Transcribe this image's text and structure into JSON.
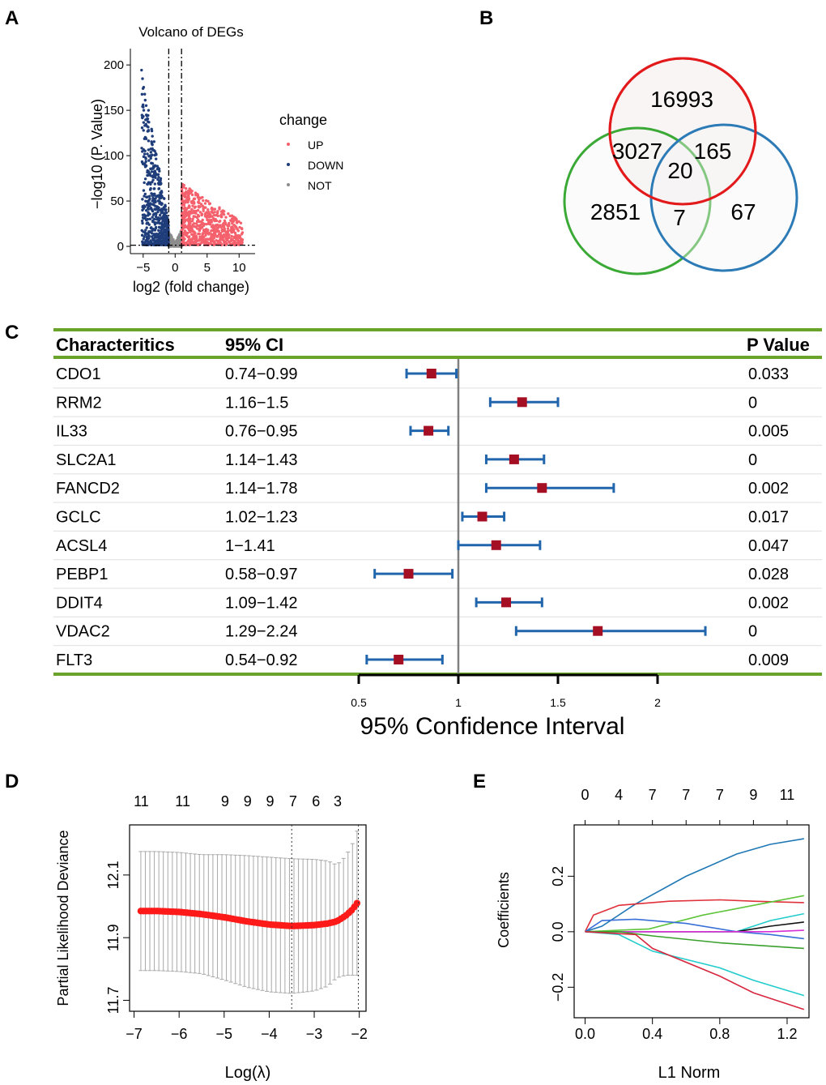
{
  "panels": {
    "A": "A",
    "B": "B",
    "C": "C",
    "D": "D",
    "E": "E"
  },
  "colors": {
    "up": "#f4606c",
    "down": "#1f3d7a",
    "not": "#8c8c8c",
    "venn_red": "#e31a1c",
    "venn_green": "#3aa935",
    "venn_blue": "#2c7bb6",
    "rule_green": "#6aa32a",
    "square": "#a50f24",
    "ci_blue": "#2166ac"
  },
  "chart_data": [
    {
      "id": "volcano",
      "type": "scatter",
      "title": "Volcano of DEGs",
      "xlabel": "log2 (fold change)",
      "ylabel": "−log10 (P. Value)",
      "xlim": [
        -7,
        12.5
      ],
      "ylim": [
        -8,
        218
      ],
      "xticks": [
        -5,
        0,
        5,
        10
      ],
      "yticks": [
        0,
        50,
        100,
        150,
        200
      ],
      "xtick_labels": [
        "−5",
        "0",
        "5",
        "10"
      ],
      "ytick_labels": [
        "0",
        "50",
        "100",
        "150",
        "200"
      ],
      "thresholds": {
        "log2fc": [
          -1,
          1
        ],
        "neg_log10_p": 1.3
      },
      "legend": {
        "title": "change",
        "entries": [
          "UP",
          "DOWN",
          "NOT"
        ]
      }
    },
    {
      "id": "venn",
      "type": "venn",
      "region_counts": [
        "16993",
        "3027",
        "165",
        "20",
        "2851",
        "7",
        "67"
      ]
    },
    {
      "id": "forest",
      "type": "forest",
      "headers": {
        "name": "Characteritics",
        "ci": "95% CI",
        "p": "P Value"
      },
      "rows": [
        {
          "name": "CDO1",
          "ci": "0.74−0.99",
          "est": 0.865,
          "low": 0.74,
          "high": 0.99,
          "p": "0.033"
        },
        {
          "name": "RRM2",
          "ci": "1.16−1.5",
          "est": 1.32,
          "low": 1.16,
          "high": 1.5,
          "p": "0"
        },
        {
          "name": "IL33",
          "ci": "0.76−0.95",
          "est": 0.85,
          "low": 0.76,
          "high": 0.95,
          "p": "0.005"
        },
        {
          "name": "SLC2A1",
          "ci": "1.14−1.43",
          "est": 1.28,
          "low": 1.14,
          "high": 1.43,
          "p": "0"
        },
        {
          "name": "FANCD2",
          "ci": "1.14−1.78",
          "est": 1.42,
          "low": 1.14,
          "high": 1.78,
          "p": "0.002"
        },
        {
          "name": "GCLC",
          "ci": "1.02−1.23",
          "est": 1.12,
          "low": 1.02,
          "high": 1.23,
          "p": "0.017"
        },
        {
          "name": "ACSL4",
          "ci": "1−1.41",
          "est": 1.19,
          "low": 1.0,
          "high": 1.41,
          "p": "0.047"
        },
        {
          "name": "PEBP1",
          "ci": "0.58−0.97",
          "est": 0.75,
          "low": 0.58,
          "high": 0.97,
          "p": "0.028"
        },
        {
          "name": "DDIT4",
          "ci": "1.09−1.42",
          "est": 1.24,
          "low": 1.09,
          "high": 1.42,
          "p": "0.002"
        },
        {
          "name": "VDAC2",
          "ci": "1.29−2.24",
          "est": 1.7,
          "low": 1.29,
          "high": 2.24,
          "p": "0"
        },
        {
          "name": "FLT3",
          "ci": "0.54−0.92",
          "est": 0.7,
          "low": 0.54,
          "high": 0.92,
          "p": "0.009"
        }
      ],
      "xlim": [
        0.5,
        2
      ],
      "reference": 1,
      "xticks": [
        0.5,
        1,
        1.5,
        2
      ],
      "xtick_labels": [
        "0.5",
        "1",
        "1.5",
        "2"
      ],
      "xlabel": "95% Confidence Interval"
    },
    {
      "id": "lasso_cv",
      "type": "line",
      "xlabel": "Log(λ)",
      "ylabel": "Partial Likelihood Deviance",
      "xlim": [
        -7.1,
        -1.85
      ],
      "ylim": [
        11.665,
        12.26
      ],
      "xticks": [
        -7,
        -6,
        -5,
        -4,
        -3,
        -2
      ],
      "xtick_labels": [
        "−7",
        "−6",
        "−5",
        "−4",
        "−3",
        "−2"
      ],
      "yticks": [
        11.7,
        11.9,
        12.1
      ],
      "ytick_labels": [
        "11.7",
        "11.9",
        "12.1"
      ],
      "top_ticks": [
        -6.84,
        -5.92,
        -4.98,
        -4.48,
        -3.98,
        -3.47,
        -2.96,
        -2.48
      ],
      "top_labels": [
        "11",
        "11",
        "9",
        "9",
        "9",
        "7",
        "6",
        "3"
      ],
      "vlines": [
        -3.5,
        -2.02
      ],
      "x": [
        -6.85,
        -6.5,
        -6.0,
        -5.5,
        -5.0,
        -4.5,
        -4.0,
        -3.5,
        -3.0,
        -2.7,
        -2.5,
        -2.3,
        -2.15,
        -2.05
      ],
      "y": [
        11.985,
        11.985,
        11.982,
        11.975,
        11.965,
        11.952,
        11.942,
        11.937,
        11.94,
        11.945,
        11.952,
        11.97,
        11.99,
        12.01
      ],
      "error": [
        0.19,
        0.19,
        0.19,
        0.19,
        0.2,
        0.21,
        0.215,
        0.215,
        0.21,
        0.2,
        0.18,
        0.19,
        0.21,
        0.23
      ]
    },
    {
      "id": "lasso_path",
      "type": "line",
      "xlabel": "L1 Norm",
      "ylabel": "Coefficients",
      "xlim": [
        -0.065,
        1.33
      ],
      "ylim": [
        -0.31,
        0.385
      ],
      "xticks": [
        0,
        0.4,
        0.8,
        1.2
      ],
      "xtick_labels": [
        "0.0",
        "0.4",
        "0.8",
        "1.2"
      ],
      "yticks": [
        -0.2,
        0,
        0.2
      ],
      "ytick_labels": [
        "−0.2",
        "0.0",
        "0.2"
      ],
      "top_ticks": [
        0,
        0.2,
        0.4,
        0.6,
        0.8,
        1.0,
        1.2
      ],
      "top_labels": [
        "0",
        "4",
        "7",
        "7",
        "7",
        "9",
        "11"
      ],
      "series": [
        {
          "name": "blue",
          "color": "#1f78b4",
          "x": [
            0,
            0.1,
            0.3,
            0.6,
            0.9,
            1.1,
            1.3
          ],
          "y": [
            0,
            0.02,
            0.1,
            0.2,
            0.28,
            0.315,
            0.335
          ]
        },
        {
          "name": "red_top",
          "color": "#e0303a",
          "x": [
            0,
            0.05,
            0.2,
            0.5,
            0.8,
            1.0,
            1.3
          ],
          "y": [
            0,
            0.06,
            0.095,
            0.11,
            0.115,
            0.11,
            0.105
          ]
        },
        {
          "name": "green_up",
          "color": "#5ec43a",
          "x": [
            0,
            0.38,
            0.7,
            1.0,
            1.3
          ],
          "y": [
            0,
            0.01,
            0.06,
            0.095,
            0.13
          ]
        },
        {
          "name": "cyan_up",
          "color": "#22cccc",
          "x": [
            0,
            0.9,
            1.1,
            1.3
          ],
          "y": [
            0,
            0,
            0.04,
            0.065
          ]
        },
        {
          "name": "blue_small",
          "color": "#3a6fd8",
          "x": [
            0,
            0.1,
            0.3,
            0.6,
            0.9,
            1.1,
            1.3
          ],
          "y": [
            0,
            0.04,
            0.045,
            0.03,
            0.0,
            -0.01,
            -0.025
          ]
        },
        {
          "name": "black",
          "color": "#111111",
          "x": [
            0,
            0.9,
            1.1,
            1.3
          ],
          "y": [
            0,
            0,
            0.02,
            0.035
          ]
        },
        {
          "name": "magenta",
          "color": "#d62fd6",
          "x": [
            0,
            1.1,
            1.3
          ],
          "y": [
            0,
            0,
            0.005
          ]
        },
        {
          "name": "green_down",
          "color": "#3aa02d",
          "x": [
            0,
            0.2,
            0.4,
            0.8,
            1.3
          ],
          "y": [
            0,
            0.0,
            -0.015,
            -0.04,
            -0.06
          ]
        },
        {
          "name": "cyan_down",
          "color": "#22cccc",
          "x": [
            0,
            0.2,
            0.4,
            0.8,
            1.0,
            1.3
          ],
          "y": [
            0,
            -0.01,
            -0.07,
            -0.13,
            -0.175,
            -0.23
          ]
        },
        {
          "name": "red_down",
          "color": "#d7263d",
          "x": [
            0,
            0.3,
            0.4,
            0.8,
            1.0,
            1.3
          ],
          "y": [
            0,
            -0.01,
            -0.06,
            -0.16,
            -0.22,
            -0.28
          ]
        }
      ]
    }
  ]
}
